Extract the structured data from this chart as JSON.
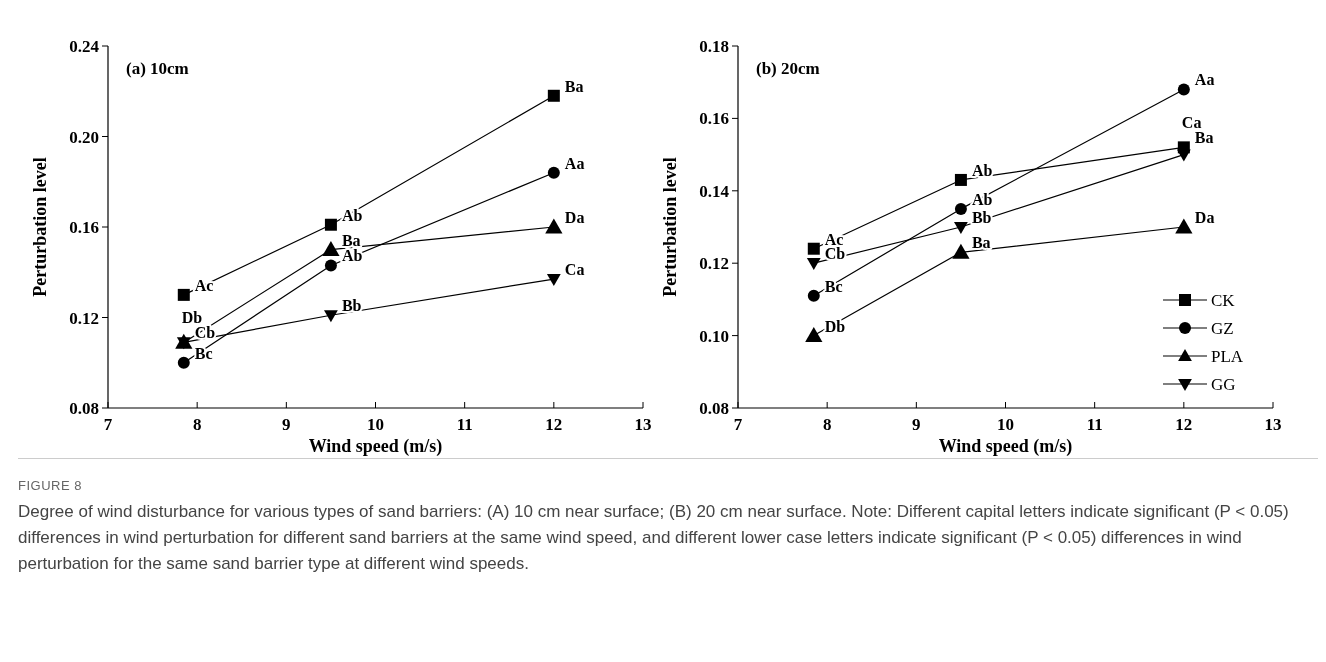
{
  "chart_data": [
    {
      "type": "line",
      "title": "(a) 10cm",
      "xlabel": "Wind speed (m/s)",
      "ylabel": "Perturbation level",
      "x": [
        7.85,
        9.5,
        12
      ],
      "xlim": [
        7,
        13
      ],
      "xticks": [
        7,
        8,
        9,
        10,
        11,
        12,
        13
      ],
      "ylim": [
        0.08,
        0.24
      ],
      "yticks": [
        0.08,
        0.12,
        0.16,
        {
          "value": 0.2,
          "label": "0.20"
        },
        0.24
      ],
      "grid": false,
      "legend": false,
      "line_style": "solid",
      "series": [
        {
          "color": "#000000",
          "marker": "square",
          "values": [
            0.13,
            0.161,
            0.218
          ]
        },
        {
          "color": "#000000",
          "marker": "circle",
          "values": [
            0.1,
            0.143,
            0.184
          ]
        },
        {
          "color": "#000000",
          "marker": "triangle",
          "values": [
            0.109,
            0.15,
            0.16
          ]
        },
        {
          "color": "#000000",
          "marker": "triangle-down",
          "values": [
            0.109,
            0.121,
            0.137
          ]
        }
      ],
      "annotations": [
        {
          "text": "Ac",
          "x": 7.85,
          "y": 0.13
        },
        {
          "text": "Ab",
          "x": 9.5,
          "y": 0.161
        },
        {
          "text": "Ba",
          "x": 12,
          "y": 0.218
        },
        {
          "text": "Bc",
          "x": 7.85,
          "y": 0.1
        },
        {
          "text": "Ab",
          "x": 9.5,
          "y": 0.143
        },
        {
          "text": "Aa",
          "x": 12,
          "y": 0.184
        },
        {
          "text": "Cb",
          "x": 7.85,
          "y": 0.109
        },
        {
          "text": "Ba",
          "x": 9.5,
          "y": 0.15
        },
        {
          "text": "Da",
          "x": 12,
          "y": 0.16
        },
        {
          "text": "Db",
          "x": 7.85,
          "y": 0.109
        },
        {
          "text": "Bb",
          "x": 9.5,
          "y": 0.121
        },
        {
          "text": "Ca",
          "x": 12,
          "y": 0.137
        },
        "FIGURE 8",
        "Degree of wind disturbance for various types of sand barriers: (A) 10 cm near surface; (B) 20 cm near surface. Note: Different capital letters indicate significant (P < 0.05) differences in wind perturbation for different sand barriers at the same wind speed, and different lower case letters indicate significant (P < 0.05) differences in wind perturbation for the same sand barrier type at different wind speeds."
      ]
    },
    {
      "type": "line",
      "title": "(b) 20cm",
      "xlabel": "Wind speed (m/s)",
      "ylabel": "Perturbation level",
      "x": [
        7.85,
        9.5,
        12
      ],
      "xlim": [
        7,
        13
      ],
      "xticks": [
        7,
        8,
        9,
        10,
        11,
        12,
        13
      ],
      "ylim": [
        0.08,
        0.18
      ],
      "yticks": [
        0.08,
        {
          "value": 0.1,
          "label": "0.10"
        },
        0.12,
        0.14,
        0.16,
        0.18
      ],
      "grid": false,
      "legend": "bottom right",
      "line_style": "solid",
      "series": [
        {
          "name": "CK",
          "color": "#000000",
          "marker": "square",
          "values": [
            0.124,
            0.143,
            0.152
          ]
        },
        {
          "name": "GZ",
          "color": "#000000",
          "marker": "circle",
          "values": [
            0.111,
            0.135,
            0.168
          ]
        },
        {
          "name": "PLA",
          "color": "#000000",
          "marker": "triangle",
          "values": [
            0.1,
            0.123,
            0.13
          ]
        },
        {
          "name": "GG",
          "color": "#000000",
          "marker": "triangle-down",
          "values": [
            0.12,
            0.13,
            0.15
          ]
        }
      ],
      "annotations": [
        {
          "text": "Ac",
          "x": 7.85,
          "y": 0.124
        },
        {
          "text": "Ab",
          "x": 9.5,
          "y": 0.143
        },
        {
          "text": "Ba",
          "x": 12,
          "y": 0.152
        },
        {
          "text": "Bc",
          "x": 7.85,
          "y": 0.111
        },
        {
          "text": "Ab",
          "x": 9.5,
          "y": 0.135
        },
        {
          "text": "Aa",
          "x": 12,
          "y": 0.168
        },
        {
          "text": "Db",
          "x": 7.85,
          "y": 0.1
        },
        {
          "text": "Ba",
          "x": 9.5,
          "y": 0.123
        },
        {
          "text": "Da",
          "x": 12,
          "y": 0.13
        },
        {
          "text": "Cb",
          "x": 7.85,
          "y": 0.12
        },
        {
          "text": "Bb",
          "x": 9.5,
          "y": 0.13
        },
        {
          "text": "Ca",
          "x": 12,
          "y": 0.15
        }
      ]
    }
  ]
}
